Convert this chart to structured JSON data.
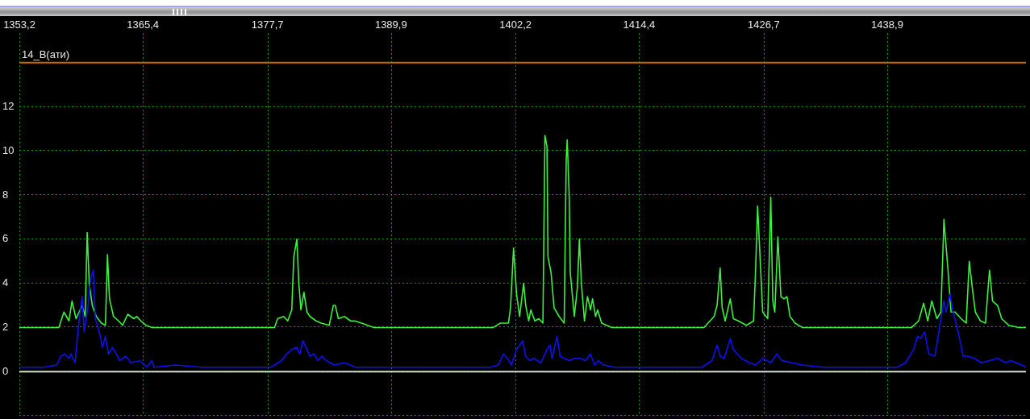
{
  "chart_data": {
    "type": "line",
    "ylabel": "14_В(ати)",
    "xlim": [
      1353.2,
      1452.6
    ],
    "xticks": [
      {
        "value": 1353.2,
        "label": "1353,2"
      },
      {
        "value": 1365.4,
        "label": "1365,4"
      },
      {
        "value": 1377.7,
        "label": "1377,7"
      },
      {
        "value": 1389.9,
        "label": "1389,9"
      },
      {
        "value": 1402.2,
        "label": "1402,2"
      },
      {
        "value": 1414.4,
        "label": "1414,4"
      },
      {
        "value": 1426.7,
        "label": "1426,7"
      },
      {
        "value": 1438.9,
        "label": "1438,9"
      }
    ],
    "ylim": [
      -2,
      16
    ],
    "yticks": [
      {
        "value": -2,
        "label": null
      },
      0,
      2,
      4,
      6,
      8,
      10,
      12
    ],
    "grid": true,
    "marker": "none",
    "ref_lines": [
      {
        "axis": "y",
        "value": 14,
        "color": "#c8640a"
      },
      {
        "axis": "y",
        "value": 0,
        "color": "#d8d8d8"
      }
    ],
    "series": [
      {
        "color": "#3cf03c",
        "x": [
          1353.2,
          1357.1,
          1357.6,
          1358.1,
          1358.4,
          1358.8,
          1359.4,
          1359.7,
          1359.9,
          1360.1,
          1360.4,
          1360.8,
          1361.3,
          1361.7,
          1361.9,
          1362.1,
          1362.5,
          1363.0,
          1363.4,
          1363.9,
          1364.5,
          1364.8,
          1365.2,
          1365.7,
          1366.3,
          1378.4,
          1378.7,
          1379.3,
          1379.7,
          1380.1,
          1380.3,
          1380.6,
          1380.8,
          1381.0,
          1381.3,
          1381.6,
          1381.9,
          1382.5,
          1383.0,
          1383.8,
          1384.2,
          1384.4,
          1384.7,
          1385.3,
          1385.9,
          1386.3,
          1387.0,
          1388.2,
          1400.0,
          1400.7,
          1401.5,
          1401.7,
          1402.0,
          1402.3,
          1402.6,
          1403.0,
          1403.2,
          1403.5,
          1403.7,
          1404.1,
          1404.5,
          1404.9,
          1405.1,
          1405.3,
          1405.4,
          1405.7,
          1406.0,
          1406.5,
          1407.0,
          1407.2,
          1407.3,
          1407.5,
          1407.6,
          1408.0,
          1408.3,
          1408.5,
          1408.7,
          1409.0,
          1409.3,
          1409.6,
          1409.8,
          1410.1,
          1410.3,
          1410.7,
          1411.2,
          1411.7,
          1420.8,
          1421.8,
          1422.1,
          1422.4,
          1422.6,
          1422.9,
          1423.4,
          1423.7,
          1424.2,
          1425.0,
          1425.7,
          1425.9,
          1426.1,
          1426.3,
          1426.6,
          1427.1,
          1427.4,
          1427.6,
          1427.8,
          1428.1,
          1428.4,
          1428.7,
          1429.0,
          1429.3,
          1429.8,
          1430.5,
          1441.3,
          1442.0,
          1442.5,
          1442.9,
          1443.3,
          1443.8,
          1444.2,
          1444.5,
          1444.6,
          1444.9,
          1445.2,
          1445.6,
          1446.2,
          1446.7,
          1447.0,
          1447.3,
          1447.6,
          1448.1,
          1448.6,
          1449.0,
          1449.3,
          1449.8,
          1450.2,
          1450.9,
          1451.9,
          1452.6
        ],
        "values": [
          2.0,
          2.0,
          2.7,
          2.3,
          3.2,
          2.4,
          3.0,
          2.5,
          6.3,
          4.0,
          3.0,
          2.5,
          2.2,
          2.1,
          5.3,
          3.3,
          2.5,
          2.3,
          2.1,
          2.6,
          2.4,
          2.5,
          2.3,
          2.1,
          2.0,
          2.0,
          2.4,
          2.5,
          2.3,
          2.8,
          5.2,
          6.0,
          4.0,
          2.8,
          3.6,
          2.7,
          2.5,
          2.3,
          2.2,
          2.1,
          3.0,
          3.0,
          2.4,
          2.5,
          2.3,
          2.3,
          2.2,
          2.0,
          2.0,
          2.2,
          2.2,
          2.9,
          5.6,
          3.5,
          2.5,
          4.0,
          3.0,
          2.3,
          2.8,
          2.3,
          2.4,
          2.2,
          10.7,
          10.2,
          5.2,
          4.5,
          2.9,
          2.5,
          2.2,
          9.6,
          10.5,
          7.9,
          4.5,
          2.5,
          3.8,
          6.0,
          4.0,
          2.3,
          3.4,
          2.8,
          3.3,
          2.5,
          2.8,
          2.2,
          2.1,
          2.0,
          2.0,
          2.5,
          3.0,
          4.7,
          2.9,
          2.3,
          3.3,
          2.4,
          2.3,
          2.1,
          2.3,
          4.6,
          7.5,
          5.6,
          2.7,
          2.4,
          7.9,
          3.2,
          2.7,
          6.1,
          3.4,
          3.3,
          3.4,
          2.5,
          2.2,
          2.0,
          2.0,
          2.3,
          3.1,
          2.3,
          3.2,
          2.4,
          2.7,
          6.9,
          6.3,
          4.6,
          2.7,
          2.7,
          2.4,
          2.2,
          5.0,
          3.8,
          2.7,
          2.3,
          2.2,
          4.6,
          3.2,
          3.0,
          2.4,
          2.1,
          2.0,
          2.0
        ]
      },
      {
        "color": "#1010f0",
        "x": [
          1353.2,
          1355.6,
          1356.9,
          1357.3,
          1357.7,
          1358.1,
          1358.3,
          1358.7,
          1359.0,
          1359.4,
          1359.6,
          1360.0,
          1360.2,
          1360.5,
          1360.7,
          1360.9,
          1361.2,
          1361.4,
          1361.7,
          1362.0,
          1362.4,
          1362.8,
          1363.1,
          1363.7,
          1364.2,
          1365.1,
          1365.8,
          1366.3,
          1366.5,
          1368.6,
          1371.2,
          1373.9,
          1376.5,
          1378.0,
          1378.4,
          1379.1,
          1379.6,
          1380.1,
          1380.6,
          1380.9,
          1381.2,
          1381.6,
          1381.9,
          1382.3,
          1382.7,
          1383.1,
          1383.5,
          1384.3,
          1385.3,
          1386.4,
          1392.1,
          1396.8,
          1399.7,
          1400.5,
          1401.0,
          1401.4,
          1401.8,
          1402.3,
          1402.9,
          1403.2,
          1403.6,
          1404.0,
          1404.7,
          1405.3,
          1405.6,
          1405.8,
          1406.3,
          1406.6,
          1407.0,
          1407.5,
          1408.0,
          1408.6,
          1409.1,
          1409.6,
          1410.0,
          1410.4,
          1410.9,
          1412.0,
          1414.1,
          1416.7,
          1419.5,
          1420.6,
          1421.6,
          1422.1,
          1422.4,
          1422.8,
          1423.4,
          1423.7,
          1424.5,
          1425.3,
          1425.9,
          1426.6,
          1427.4,
          1428.0,
          1428.5,
          1429.5,
          1430.5,
          1432.6,
          1435.2,
          1439.9,
          1440.7,
          1441.5,
          1441.9,
          1442.2,
          1442.6,
          1443.0,
          1443.6,
          1444.1,
          1444.5,
          1444.7,
          1445.1,
          1445.4,
          1445.7,
          1446.0,
          1446.4,
          1446.8,
          1447.5,
          1448.2,
          1449.0,
          1449.8,
          1450.6,
          1451.1,
          1452.2,
          1452.6
        ],
        "values": [
          0.2,
          0.2,
          0.3,
          0.7,
          0.8,
          0.6,
          0.8,
          0.4,
          1.9,
          3.4,
          1.8,
          3.0,
          4.1,
          4.6,
          2.4,
          2.1,
          1.6,
          1.1,
          1.6,
          0.8,
          1.1,
          0.8,
          0.5,
          0.7,
          0.4,
          0.5,
          0.2,
          0.5,
          0.2,
          0.3,
          0.2,
          0.2,
          0.2,
          0.2,
          0.3,
          0.5,
          0.8,
          1.0,
          1.1,
          0.8,
          1.4,
          1.0,
          0.7,
          0.8,
          0.5,
          0.7,
          0.5,
          0.3,
          0.4,
          0.2,
          0.2,
          0.2,
          0.2,
          0.3,
          0.8,
          0.6,
          0.3,
          1.0,
          1.4,
          0.7,
          0.5,
          0.6,
          0.4,
          1.0,
          1.2,
          0.6,
          1.6,
          0.7,
          0.6,
          0.5,
          0.6,
          0.6,
          0.5,
          0.8,
          0.3,
          0.5,
          0.3,
          0.2,
          0.2,
          0.2,
          0.2,
          0.2,
          0.5,
          1.2,
          0.7,
          0.6,
          1.5,
          1.0,
          0.6,
          0.4,
          0.3,
          0.6,
          0.4,
          0.8,
          0.5,
          0.4,
          0.3,
          0.2,
          0.2,
          0.2,
          0.4,
          1.0,
          1.6,
          1.5,
          1.8,
          0.8,
          0.7,
          2.1,
          3.2,
          2.7,
          3.5,
          2.7,
          2.2,
          1.6,
          0.7,
          0.7,
          0.6,
          0.4,
          0.5,
          0.6,
          0.4,
          0.5,
          0.3,
          0.2
        ]
      }
    ]
  }
}
